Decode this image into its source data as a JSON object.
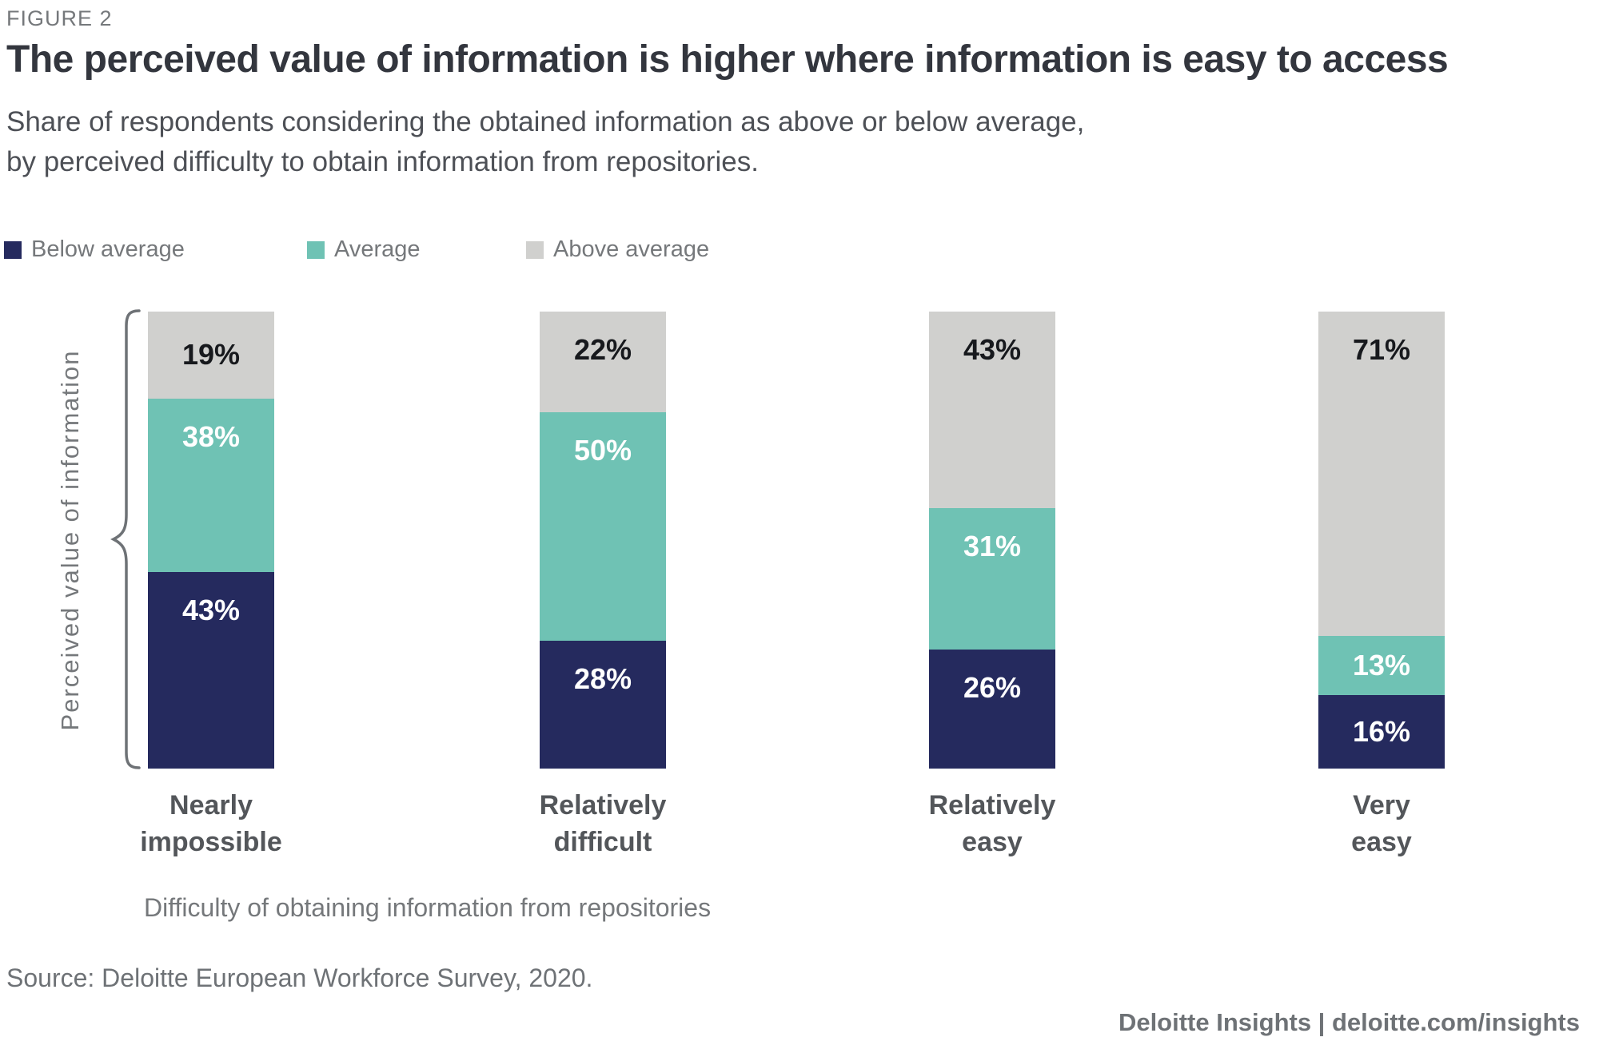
{
  "figure_label": "FIGURE 2",
  "title": "The perceived value of information is higher where information is easy to access",
  "subtitle": {
    "line1": "Share of respondents considering the obtained information as above or below average,",
    "line2": "by perceived difficulty to obtain information from repositories."
  },
  "axis": {
    "y_label": "Perceived value of information",
    "x_label": "Difficulty of obtaining information from repositories"
  },
  "source": "Source: Deloitte European Workforce Survey, 2020.",
  "footer": "Deloitte Insights | deloitte.com/insights",
  "colors": {
    "below_average": "#252A5E",
    "average": "#6FC2B4",
    "above_average": "#D0D0CE",
    "text_gray": "#75787B",
    "title_dark": "#33363E"
  },
  "chart_data": {
    "type": "bar",
    "stacked": true,
    "grid": false,
    "legend_position": "top",
    "value_suffix": "%",
    "ylim": [
      0,
      100
    ],
    "title": "The perceived value of information is higher where information is easy to access",
    "xlabel": "Difficulty of obtaining information from repositories",
    "ylabel": "Perceived value of information",
    "categories": [
      "Nearly impossible",
      "Relatively difficult",
      "Relatively easy",
      "Very easy"
    ],
    "series": [
      {
        "name": "Below average",
        "color": "#252A5E",
        "label_color": "#FFFFFF",
        "values": [
          43,
          28,
          26,
          16
        ]
      },
      {
        "name": "Average",
        "color": "#6FC2B4",
        "label_color": "#FFFFFF",
        "values": [
          38,
          50,
          31,
          13
        ]
      },
      {
        "name": "Above average",
        "color": "#D0D0CE",
        "label_color": "#17191D",
        "values": [
          19,
          22,
          43,
          71
        ]
      }
    ]
  }
}
